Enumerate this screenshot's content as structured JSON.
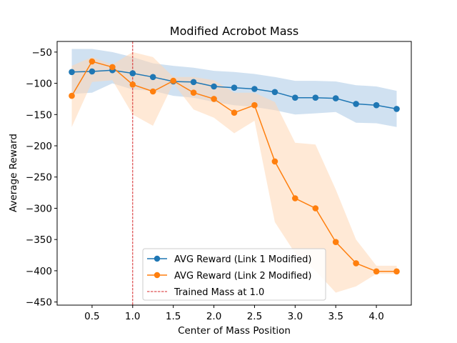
{
  "chart_data": {
    "type": "line",
    "title": "Modified Acrobot Mass",
    "xlabel": "Center of Mass Position",
    "ylabel": "Average Reward",
    "xlim": [
      0.07,
      4.43
    ],
    "ylim": [
      -455,
      -33
    ],
    "xticks": [
      0.5,
      1.0,
      1.5,
      2.0,
      2.5,
      3.0,
      3.5,
      4.0
    ],
    "xtick_labels": [
      "0.5",
      "1.0",
      "1.5",
      "2.0",
      "2.5",
      "3.0",
      "3.5",
      "4.0"
    ],
    "yticks": [
      -50,
      -100,
      -150,
      -200,
      -250,
      -300,
      -350,
      -400,
      -450
    ],
    "ytick_labels": [
      "−50",
      "−100",
      "−150",
      "−200",
      "−250",
      "−300",
      "−350",
      "−400",
      "−450"
    ],
    "grid": false,
    "legend_position": "lower-center",
    "x": [
      0.25,
      0.5,
      0.75,
      1.0,
      1.25,
      1.5,
      1.75,
      2.0,
      2.25,
      2.5,
      2.75,
      3.0,
      3.25,
      3.5,
      3.75,
      4.0,
      4.25
    ],
    "series": [
      {
        "name": "AVG Reward (Link 1 Modified)",
        "color": "#1f77b4",
        "band_color": "#aac9e6",
        "values": [
          -82,
          -81,
          -79,
          -84,
          -90,
          -97,
          -98,
          -105,
          -107,
          -109,
          -114,
          -123,
          -123,
          -124,
          -133,
          -135,
          -141
        ],
        "upper": [
          -45,
          -45,
          -50,
          -58,
          -68,
          -72,
          -75,
          -80,
          -82,
          -85,
          -90,
          -96,
          -96,
          -97,
          -103,
          -105,
          -112
        ],
        "lower": [
          -117,
          -115,
          -100,
          -110,
          -112,
          -120,
          -123,
          -130,
          -135,
          -138,
          -143,
          -150,
          -148,
          -146,
          -163,
          -164,
          -170
        ]
      },
      {
        "name": "AVG Reward (Link 2 Modified)",
        "color": "#ff7f0e",
        "band_color": "#ffd7b5",
        "values": [
          -120,
          -65,
          -74,
          -102,
          -113,
          -96,
          -115,
          -125,
          -147,
          -135,
          -225,
          -284,
          -300,
          -354,
          -388,
          -401,
          -401
        ],
        "upper": [
          -72,
          -58,
          -70,
          -50,
          -58,
          -90,
          -90,
          -95,
          -115,
          -115,
          -130,
          -195,
          -198,
          -270,
          -350,
          -392,
          -392
        ],
        "lower": [
          -170,
          -98,
          -95,
          -150,
          -168,
          -100,
          -142,
          -155,
          -180,
          -160,
          -322,
          -372,
          -400,
          -435,
          -425,
          -405,
          -405
        ]
      }
    ],
    "vline": {
      "x": 1.0,
      "label": "Trained Mass at 1.0",
      "color": "#d62728"
    }
  }
}
